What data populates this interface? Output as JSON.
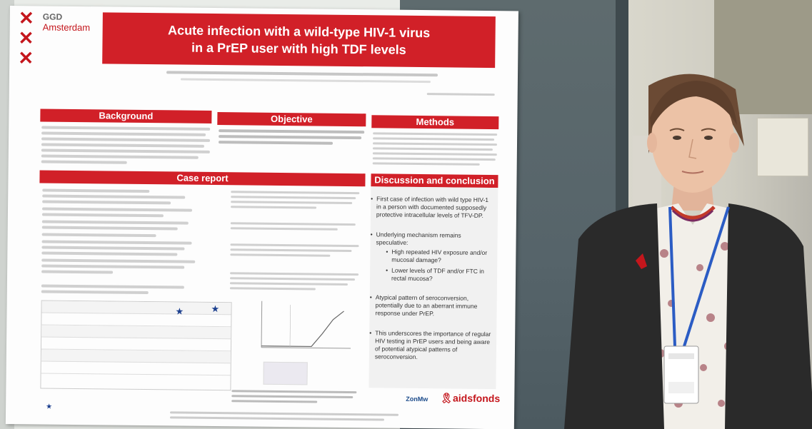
{
  "poster": {
    "logo": {
      "org": "GGD",
      "city": "Amsterdam"
    },
    "title": {
      "line1": "Acute infection with a wild-type HIV-1 virus",
      "line2": "in a PrEP user with high TDF levels"
    },
    "sections": {
      "background": "Background",
      "objective": "Objective",
      "methods": "Methods",
      "case_report": "Case report",
      "discussion": "Discussion and conclusion"
    },
    "discussion_points": [
      "First case of infection with wild type HIV-1 in a person with documented supposedly protective intracellular levels of TFV-DP.",
      "Underlying mechanism remains speculative:",
      "High repeated HIV exposure and/or mucosal damage?",
      "Lower levels of TDF and/or FTC in rectal mucosa?",
      "Atypical pattern of seroconversion, potentially due to an aberrant immune response under PrEP.",
      "This underscores the importance of regular HIV testing in PrEP users and being aware of potential atypical patterns of seroconversion."
    ],
    "funders": {
      "zonmw": "ZonMw",
      "aidsfonds": "aidsfonds"
    }
  },
  "colors": {
    "poster_red": "#d12028",
    "logo_red": "#c4161c",
    "board": "#56646a",
    "star_blue": "#1a3e8e"
  },
  "icons": [
    "x-mark-icon",
    "star-icon",
    "ribbon-icon"
  ]
}
